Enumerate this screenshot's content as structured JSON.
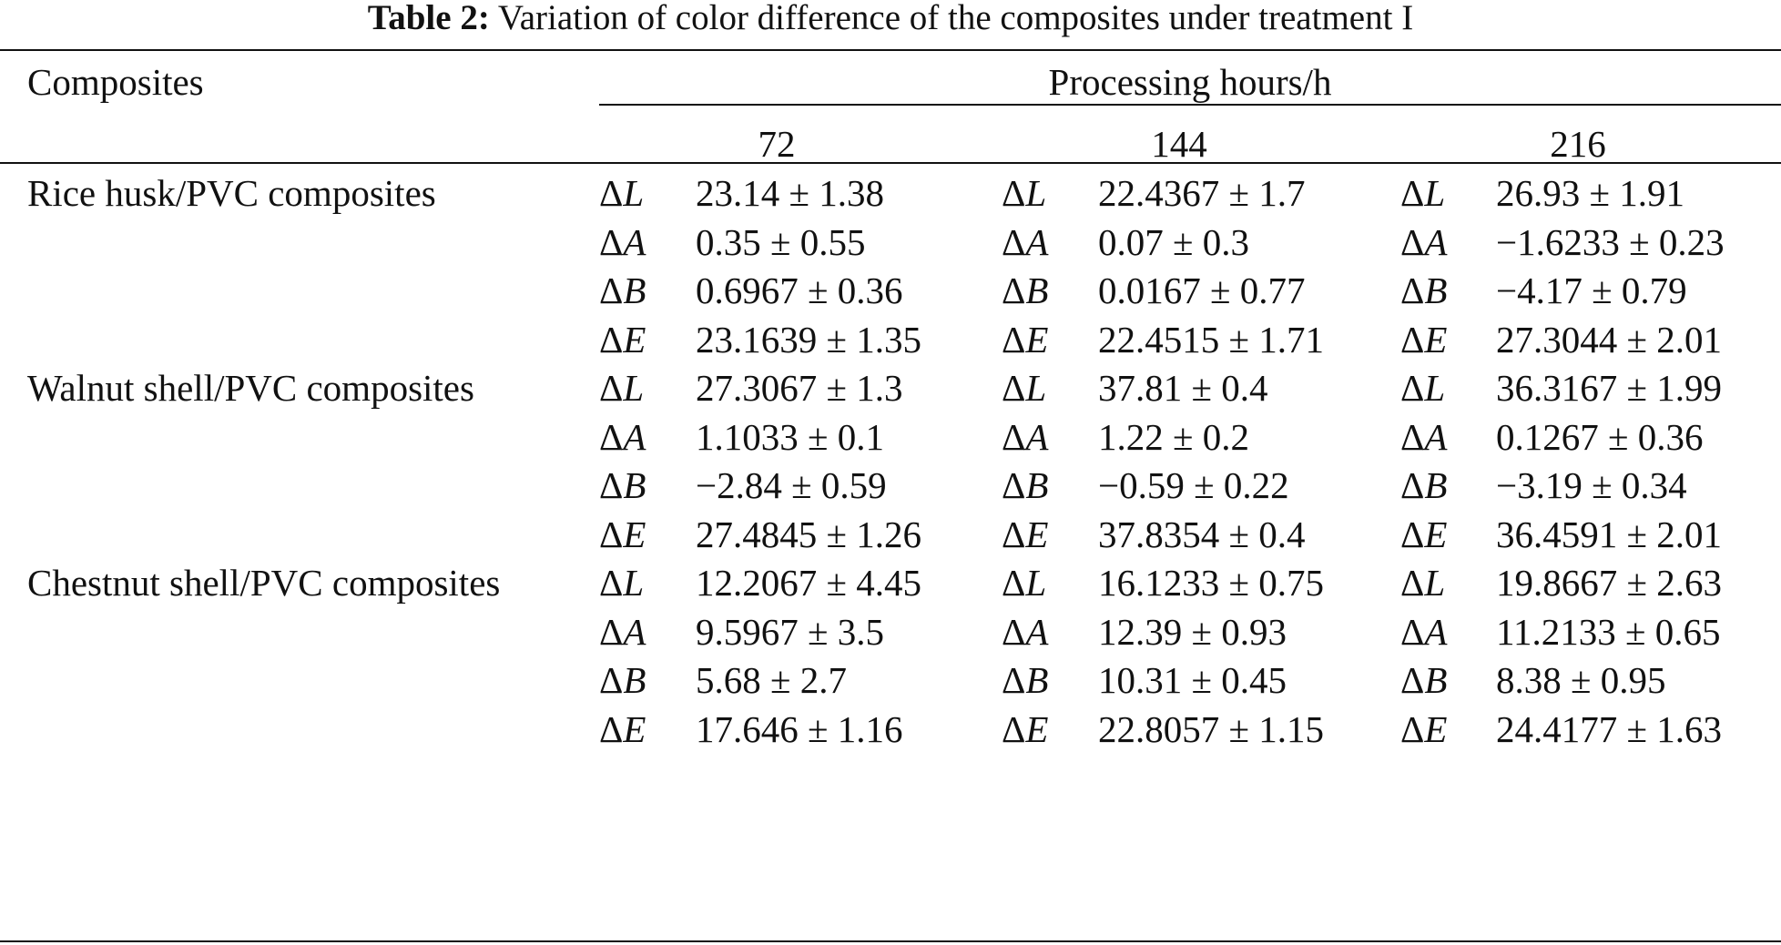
{
  "caption": {
    "label": "Table 2:",
    "text": "Variation of color difference of the composites under treatment I"
  },
  "header": {
    "first_col": "Composites",
    "group": "Processing hours/h",
    "hours": [
      "72",
      "144",
      "216"
    ]
  },
  "groups": [
    {
      "name": "Rice husk/PVC composites",
      "rows": [
        {
          "param": "L",
          "values": [
            "23.14 ± 1.38",
            "22.4367 ± 1.7",
            "26.93 ± 1.91"
          ]
        },
        {
          "param": "A",
          "values": [
            "0.35 ± 0.55",
            "0.07 ± 0.3",
            "−1.6233 ± 0.23"
          ]
        },
        {
          "param": "B",
          "values": [
            "0.6967 ± 0.36",
            "0.0167 ± 0.77",
            "−4.17 ± 0.79"
          ]
        },
        {
          "param": "E",
          "values": [
            "23.1639 ± 1.35",
            "22.4515 ± 1.71",
            "27.3044 ± 2.01"
          ]
        }
      ]
    },
    {
      "name": "Walnut shell/PVC composites",
      "rows": [
        {
          "param": "L",
          "values": [
            "27.3067 ± 1.3",
            "37.81 ± 0.4",
            "36.3167 ± 1.99"
          ]
        },
        {
          "param": "A",
          "values": [
            "1.1033 ± 0.1",
            "1.22 ± 0.2",
            "0.1267 ± 0.36"
          ]
        },
        {
          "param": "B",
          "values": [
            "−2.84 ± 0.59",
            "−0.59 ± 0.22",
            "−3.19 ± 0.34"
          ]
        },
        {
          "param": "E",
          "values": [
            "27.4845 ± 1.26",
            "37.8354 ± 0.4",
            "36.4591 ± 2.01"
          ]
        }
      ]
    },
    {
      "name": "Chestnut shell/PVC composites",
      "rows": [
        {
          "param": "L",
          "values": [
            "12.2067 ± 4.45",
            "16.1233 ± 0.75",
            "19.8667 ± 2.63"
          ]
        },
        {
          "param": "A",
          "values": [
            "9.5967 ± 3.5",
            "12.39 ± 0.93",
            "11.2133 ± 0.65"
          ]
        },
        {
          "param": "B",
          "values": [
            "5.68 ± 2.7",
            "10.31 ± 0.45",
            "8.38 ± 0.95"
          ]
        },
        {
          "param": "E",
          "values": [
            "17.646 ± 1.16",
            "22.8057 ± 1.15",
            "24.4177 ± 1.63"
          ]
        }
      ]
    }
  ]
}
